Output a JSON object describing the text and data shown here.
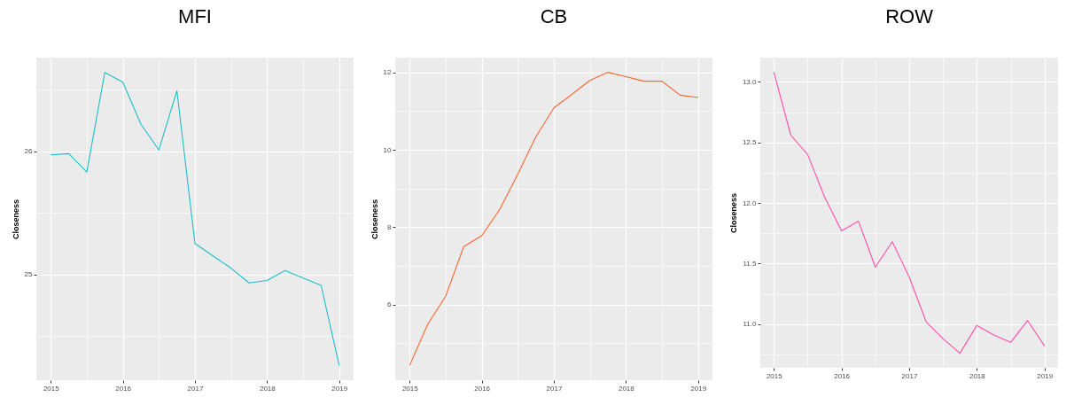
{
  "chart_data": [
    {
      "type": "line",
      "title": "MFI",
      "ylabel": "Closeness",
      "x": [
        2015,
        2015.25,
        2015.5,
        2015.75,
        2016,
        2016.25,
        2016.5,
        2016.75,
        2017,
        2017.25,
        2017.5,
        2017.75,
        2018,
        2018.25,
        2018.5,
        2018.75,
        2019
      ],
      "series": [
        {
          "color": "#1EBFC6",
          "values": [
            25.97,
            25.98,
            25.83,
            26.64,
            26.56,
            26.22,
            26.01,
            26.49,
            25.25,
            25.15,
            25.05,
            24.93,
            24.95,
            25.03,
            24.97,
            24.91,
            24.26
          ]
        }
      ],
      "xlim": [
        2014.8,
        2019.2
      ],
      "xticks": [
        2015,
        {
          "value": 2015.5,
          "label": null
        },
        2016,
        {
          "value": 2016.5,
          "label": null
        },
        2017,
        {
          "value": 2017.5,
          "label": null
        },
        2018,
        {
          "value": 2018.5,
          "label": null
        },
        2019
      ],
      "ylim": [
        24.14,
        26.76
      ],
      "yticks": [
        {
          "value": 24.5,
          "label": null
        },
        25,
        {
          "value": 25.5,
          "label": null
        },
        26,
        {
          "value": 26.5,
          "label": null
        }
      ],
      "grid": true
    },
    {
      "type": "line",
      "title": "CB",
      "ylabel": "Closeness",
      "x": [
        2015,
        2015.25,
        2015.5,
        2015.75,
        2016,
        2016.25,
        2016.5,
        2016.75,
        2017,
        2017.25,
        2017.5,
        2017.75,
        2018,
        2018.25,
        2018.5,
        2018.75,
        2019
      ],
      "series": [
        {
          "color": "#F8652F",
          "values": [
            4.43,
            5.49,
            6.22,
            7.5,
            7.78,
            8.46,
            9.37,
            10.33,
            11.08,
            11.43,
            11.79,
            12.0,
            11.89,
            11.77,
            11.77,
            11.41,
            11.35
          ]
        }
      ],
      "xlim": [
        2014.8,
        2019.2
      ],
      "xticks": [
        2015,
        {
          "value": 2015.5,
          "label": null
        },
        2016,
        {
          "value": 2016.5,
          "label": null
        },
        2017,
        {
          "value": 2017.5,
          "label": null
        },
        2018,
        {
          "value": 2018.5,
          "label": null
        },
        2019
      ],
      "ylim": [
        4.05,
        12.38
      ],
      "yticks": [
        {
          "value": 5,
          "label": null
        },
        6,
        {
          "value": 7,
          "label": null
        },
        8,
        {
          "value": 9,
          "label": null
        },
        10,
        {
          "value": 11,
          "label": null
        },
        12
      ],
      "grid": true
    },
    {
      "type": "line",
      "title": "ROW",
      "ylabel": "Closeness",
      "x": [
        2015,
        2015.25,
        2015.5,
        2015.75,
        2016,
        2016.25,
        2016.5,
        2016.75,
        2017,
        2017.25,
        2017.5,
        2017.75,
        2018,
        2018.25,
        2018.5,
        2018.75,
        2019
      ],
      "series": [
        {
          "color": "#FF4DAA",
          "values": [
            13.08,
            12.56,
            12.4,
            12.05,
            11.77,
            11.85,
            11.47,
            11.68,
            11.39,
            11.02,
            10.88,
            10.76,
            10.99,
            10.91,
            10.85,
            11.03,
            10.82
          ]
        }
      ],
      "xlim": [
        2014.8,
        2019.2
      ],
      "xticks": [
        2015,
        {
          "value": 2015.5,
          "label": null
        },
        2016,
        {
          "value": 2016.5,
          "label": null
        },
        2017,
        {
          "value": 2017.5,
          "label": null
        },
        2018,
        {
          "value": 2018.5,
          "label": null
        },
        2019
      ],
      "ylim": [
        10.64,
        13.2
      ],
      "yticks": [
        {
          "value": 10.75,
          "label": null
        },
        {
          "value": 11,
          "label": "11.0"
        },
        {
          "value": 11.25,
          "label": null
        },
        {
          "value": 11.5,
          "label": "11.5"
        },
        {
          "value": 11.75,
          "label": null
        },
        {
          "value": 12,
          "label": "12.0"
        },
        {
          "value": 12.25,
          "label": null
        },
        {
          "value": 12.5,
          "label": "12.5"
        },
        {
          "value": 12.75,
          "label": null
        },
        {
          "value": 13,
          "label": "13.0"
        }
      ],
      "grid": true
    }
  ]
}
